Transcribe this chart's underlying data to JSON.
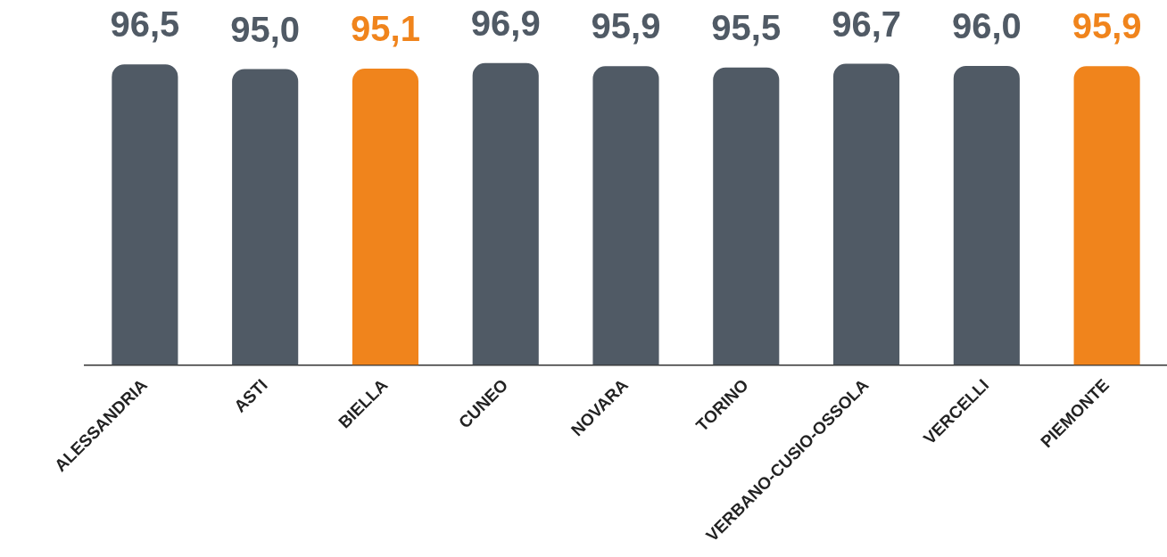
{
  "chart_data": {
    "type": "bar",
    "categories": [
      "ALESSANDRIA",
      "ASTI",
      "BIELLA",
      "CUNEO",
      "NOVARA",
      "TORINO",
      "VERBANO-CUSIO-OSSOLA",
      "VERCELLI",
      "PIEMONTE"
    ],
    "values": [
      96.5,
      95.0,
      95.1,
      96.9,
      95.9,
      95.5,
      96.7,
      96.0,
      95.9
    ],
    "colors": [
      "#505a65",
      "#505a65",
      "#f0841c",
      "#505a65",
      "#505a65",
      "#505a65",
      "#505a65",
      "#505a65",
      "#f0841c"
    ],
    "value_labels": [
      "96,5",
      "95,0",
      "95,1",
      "96,9",
      "95,9",
      "95,5",
      "96,7",
      "96,0",
      "95,9"
    ],
    "tick_labels": "x",
    "grid": false,
    "legend": false
  }
}
